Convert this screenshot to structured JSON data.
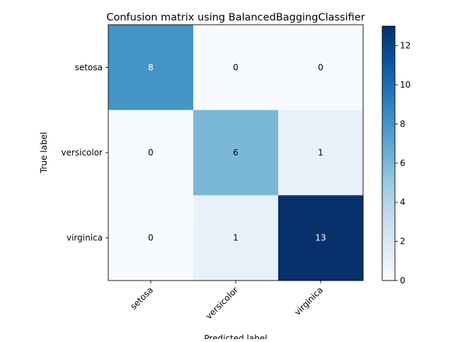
{
  "chart_data": {
    "type": "heatmap",
    "title": "Confusion matrix using BalancedBaggingClassifier",
    "xlabel": "Predicted label",
    "ylabel": "True label",
    "x_categories": [
      "setosa",
      "versicolor",
      "virginica"
    ],
    "y_categories": [
      "setosa",
      "versicolor",
      "virginica"
    ],
    "values": [
      [
        8,
        0,
        0
      ],
      [
        0,
        6,
        1
      ],
      [
        0,
        1,
        13
      ]
    ],
    "colormap": "Blues",
    "colorbar": {
      "range": [
        0,
        13
      ],
      "ticks": [
        0,
        2,
        4,
        6,
        8,
        10,
        12
      ]
    },
    "text_color_light": "#ffffff",
    "text_color_dark": "#000000"
  }
}
